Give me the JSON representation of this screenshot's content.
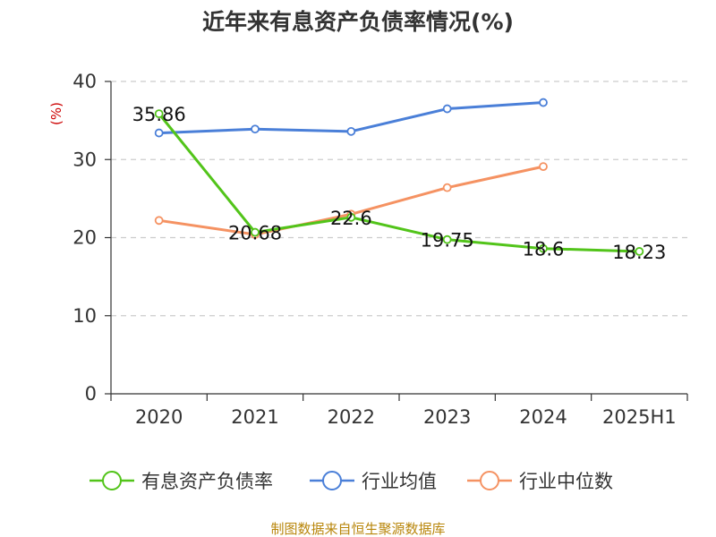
{
  "chart_data": {
    "type": "line",
    "title": "近年来有息资产负债率情况(%)",
    "unit_label": "(%)",
    "categories": [
      "2020",
      "2021",
      "2022",
      "2023",
      "2024",
      "2025H1"
    ],
    "ylim": [
      0,
      40
    ],
    "yticks": [
      0,
      10,
      20,
      30,
      40
    ],
    "grid": true,
    "legend_position": "bottom",
    "series": [
      {
        "name": "有息资产负债率",
        "color": "#52c41a",
        "values": [
          35.86,
          20.68,
          22.6,
          19.75,
          18.6,
          18.23
        ],
        "labels": [
          "35.86",
          "20.68",
          "22.6",
          "19.75",
          "18.6",
          "18.23"
        ]
      },
      {
        "name": "行业均值",
        "color": "#4a7fd8",
        "values": [
          33.4,
          33.9,
          33.6,
          36.5,
          37.3,
          null
        ]
      },
      {
        "name": "行业中位数",
        "color": "#f59262",
        "values": [
          22.2,
          20.4,
          23.0,
          26.4,
          29.1,
          null
        ]
      }
    ],
    "source": "制图数据来自恒生聚源数据库"
  }
}
